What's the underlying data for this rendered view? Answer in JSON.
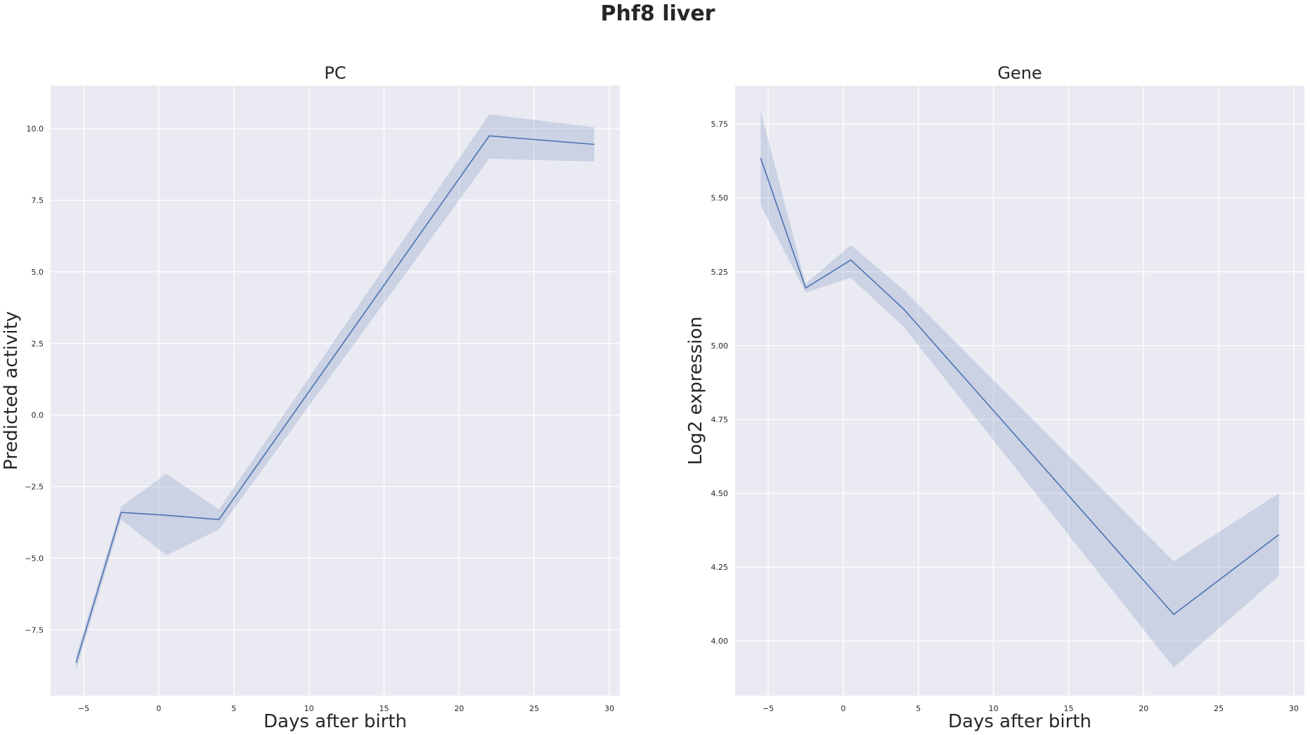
{
  "suptitle": "Phf8 liver",
  "colors": {
    "axes_bg": "#eaeaf2",
    "grid": "#ffffff",
    "line": "#4c72b0",
    "band": "#4c72b0",
    "text": "#262626"
  },
  "chart_data": [
    {
      "type": "line",
      "title": "PC",
      "xlabel": "Days after birth",
      "ylabel": "Predicted activity",
      "xlim": [
        -7.2,
        30.7
      ],
      "ylim": [
        -9.8,
        11.5
      ],
      "xticks": [
        -5,
        0,
        5,
        10,
        15,
        20,
        25,
        30
      ],
      "yticks": [
        -7.5,
        -5.0,
        -2.5,
        0.0,
        2.5,
        5.0,
        7.5,
        10.0
      ],
      "xtick_labels": [
        "−5",
        "0",
        "5",
        "10",
        "15",
        "20",
        "25",
        "30"
      ],
      "ytick_labels": [
        "−7.5",
        "−5.0",
        "−2.5",
        "0.0",
        "2.5",
        "5.0",
        "7.5",
        "10.0"
      ],
      "grid": true,
      "series": [
        {
          "x": [
            -5.5,
            -2.5,
            0.5,
            4,
            22,
            29
          ],
          "y": [
            -8.65,
            -3.4,
            -3.5,
            -3.65,
            9.75,
            9.45
          ],
          "ci_low": [
            -8.9,
            -3.65,
            -4.9,
            -4.0,
            8.95,
            8.85
          ],
          "ci_high": [
            -8.4,
            -3.2,
            -2.05,
            -3.3,
            10.5,
            10.05
          ]
        }
      ]
    },
    {
      "type": "line",
      "title": "Gene",
      "xlabel": "Days after birth",
      "ylabel": "Log2 expression",
      "xlim": [
        -7.2,
        30.7
      ],
      "ylim": [
        3.815,
        5.88
      ],
      "xticks": [
        -5,
        0,
        5,
        10,
        15,
        20,
        25,
        30
      ],
      "yticks": [
        4.0,
        4.25,
        4.5,
        4.75,
        5.0,
        5.25,
        5.5,
        5.75
      ],
      "xtick_labels": [
        "−5",
        "0",
        "5",
        "10",
        "15",
        "20",
        "25",
        "30"
      ],
      "ytick_labels": [
        "4.00",
        "4.25",
        "4.50",
        "4.75",
        "5.00",
        "5.25",
        "5.50",
        "5.75"
      ],
      "grid": true,
      "series": [
        {
          "x": [
            -5.5,
            -2.5,
            0.5,
            4,
            22,
            29
          ],
          "y": [
            5.635,
            5.195,
            5.29,
            5.125,
            4.09,
            4.36
          ],
          "ci_low": [
            5.475,
            5.18,
            5.23,
            5.065,
            3.91,
            4.22
          ],
          "ci_high": [
            5.795,
            5.21,
            5.34,
            5.19,
            4.27,
            4.5
          ]
        }
      ]
    }
  ]
}
